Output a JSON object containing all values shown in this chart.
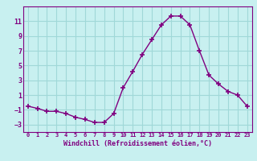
{
  "x": [
    0,
    1,
    2,
    3,
    4,
    5,
    6,
    7,
    8,
    9,
    10,
    11,
    12,
    13,
    14,
    15,
    16,
    17,
    18,
    19,
    20,
    21,
    22,
    23
  ],
  "y": [
    -0.5,
    -0.8,
    -1.2,
    -1.2,
    -1.5,
    -2.0,
    -2.3,
    -2.7,
    -2.7,
    -1.5,
    2.0,
    4.2,
    6.5,
    8.5,
    10.5,
    11.7,
    11.7,
    10.5,
    7.0,
    3.7,
    2.5,
    1.5,
    1.0,
    -0.5
  ],
  "line_color": "#800080",
  "marker_color": "#800080",
  "bg_color": "#c8f0f0",
  "grid_color": "#a0d8d8",
  "xlabel": "Windchill (Refroidissement éolien,°C)",
  "ylim": [
    -4,
    13
  ],
  "xlim": [
    -0.5,
    23.5
  ],
  "yticks": [
    -3,
    -1,
    1,
    3,
    5,
    7,
    9,
    11
  ],
  "xticks": [
    0,
    1,
    2,
    3,
    4,
    5,
    6,
    7,
    8,
    9,
    10,
    11,
    12,
    13,
    14,
    15,
    16,
    17,
    18,
    19,
    20,
    21,
    22,
    23
  ]
}
